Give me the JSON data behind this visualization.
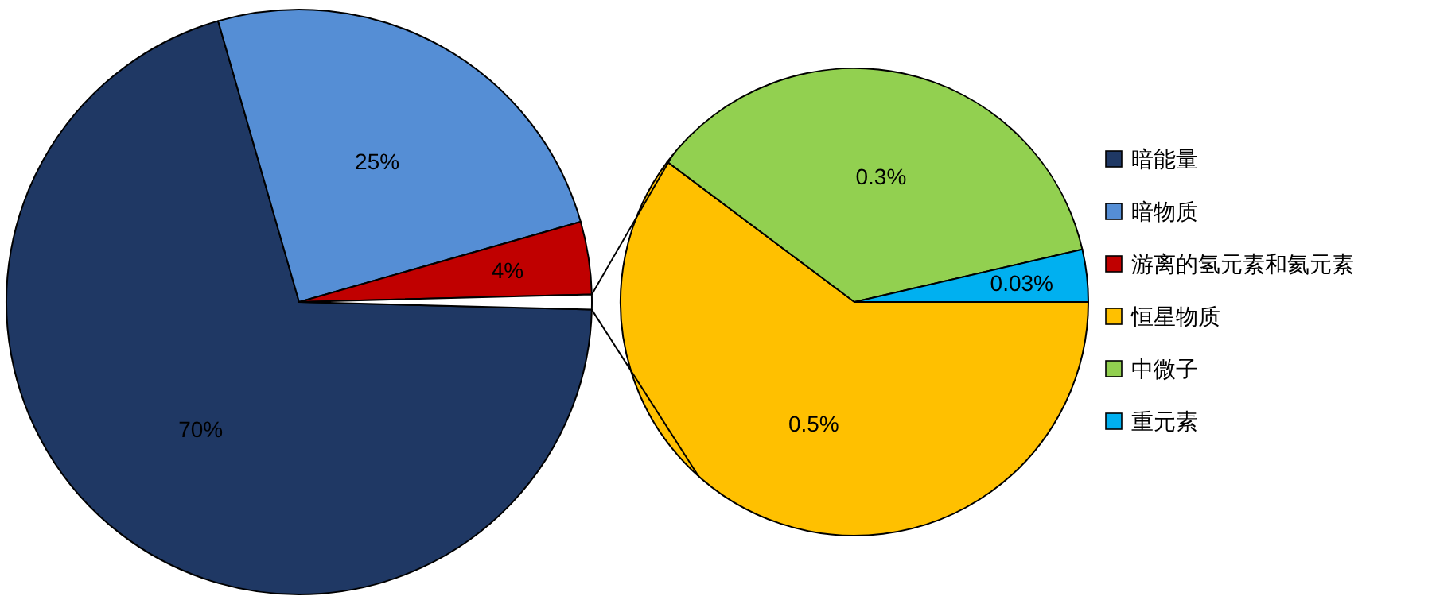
{
  "chart_data": [
    {
      "type": "pie",
      "categories": [
        "暗能量",
        "暗物质",
        "游离的氢元素和氦元素",
        null
      ],
      "values": [
        70,
        25,
        4,
        0.83
      ],
      "colors": [
        "#1f3864",
        "#558ed5",
        "#c00000",
        "#ffffff"
      ],
      "value_labels": [
        "70%",
        "25%",
        "4%",
        null
      ],
      "legend": "right"
    },
    {
      "type": "pie",
      "categories": [
        "恒星物质",
        "中微子",
        "重元素"
      ],
      "values": [
        0.5,
        0.3,
        0.03
      ],
      "colors": [
        "#ffc000",
        "#92d050",
        "#00b0f0"
      ],
      "value_labels": [
        "0.5%",
        "0.3%",
        "0.03%"
      ],
      "legend": "right"
    }
  ]
}
